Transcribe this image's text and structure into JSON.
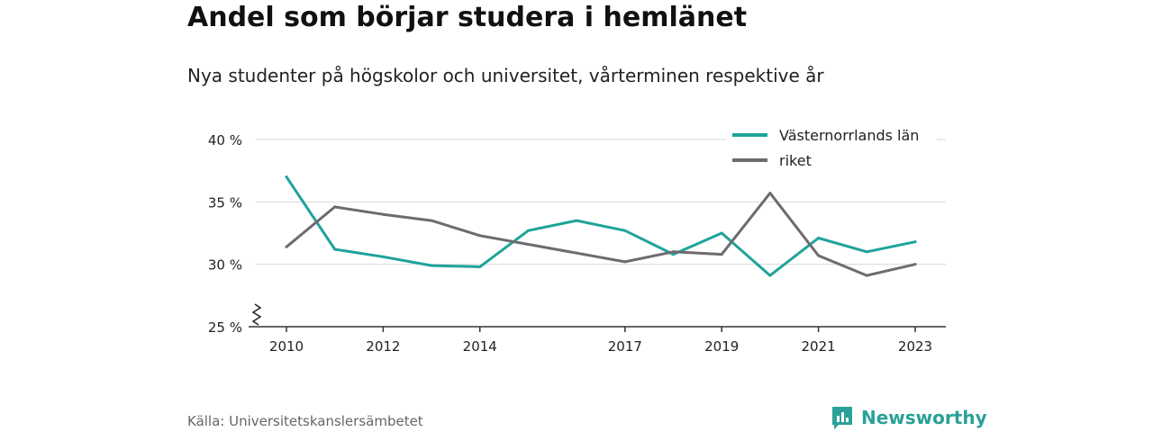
{
  "title": "Andel som börjar studera i hemlänet",
  "subtitle": "Nya studenter på högskolor och universitet, vårterminen respektive år",
  "source": "Källa: Universitetskanslersämbetet",
  "brand": {
    "name": "Newsworthy",
    "icon": "newsworthy-logo-icon",
    "color": "#2aa198"
  },
  "chart_data": {
    "type": "line",
    "x": [
      2010,
      2011,
      2012,
      2013,
      2014,
      2015,
      2016,
      2017,
      2018,
      2019,
      2020,
      2021,
      2022,
      2023
    ],
    "x_ticks": [
      2010,
      2012,
      2014,
      2017,
      2019,
      2021,
      2023
    ],
    "y_ticks": [
      25,
      30,
      35,
      40
    ],
    "y_tick_labels": [
      "25 %",
      "30 %",
      "35 %",
      "40 %"
    ],
    "ylim": [
      25,
      40.5
    ],
    "xlim": [
      2009.7,
      2023.6
    ],
    "y_axis_break": true,
    "grid": true,
    "legend_position": "top-right",
    "series": [
      {
        "name": "Västernorrlands län",
        "color": "#1fa39a",
        "values": [
          37.0,
          31.2,
          30.6,
          29.9,
          29.8,
          32.7,
          33.5,
          32.7,
          30.8,
          32.5,
          29.1,
          32.1,
          31.0,
          31.8
        ]
      },
      {
        "name": "riket",
        "color": "#6d6b70",
        "values": [
          31.4,
          34.6,
          34.0,
          33.5,
          32.3,
          31.6,
          30.9,
          30.2,
          31.0,
          30.8,
          35.7,
          30.7,
          29.1,
          30.0
        ]
      }
    ]
  }
}
